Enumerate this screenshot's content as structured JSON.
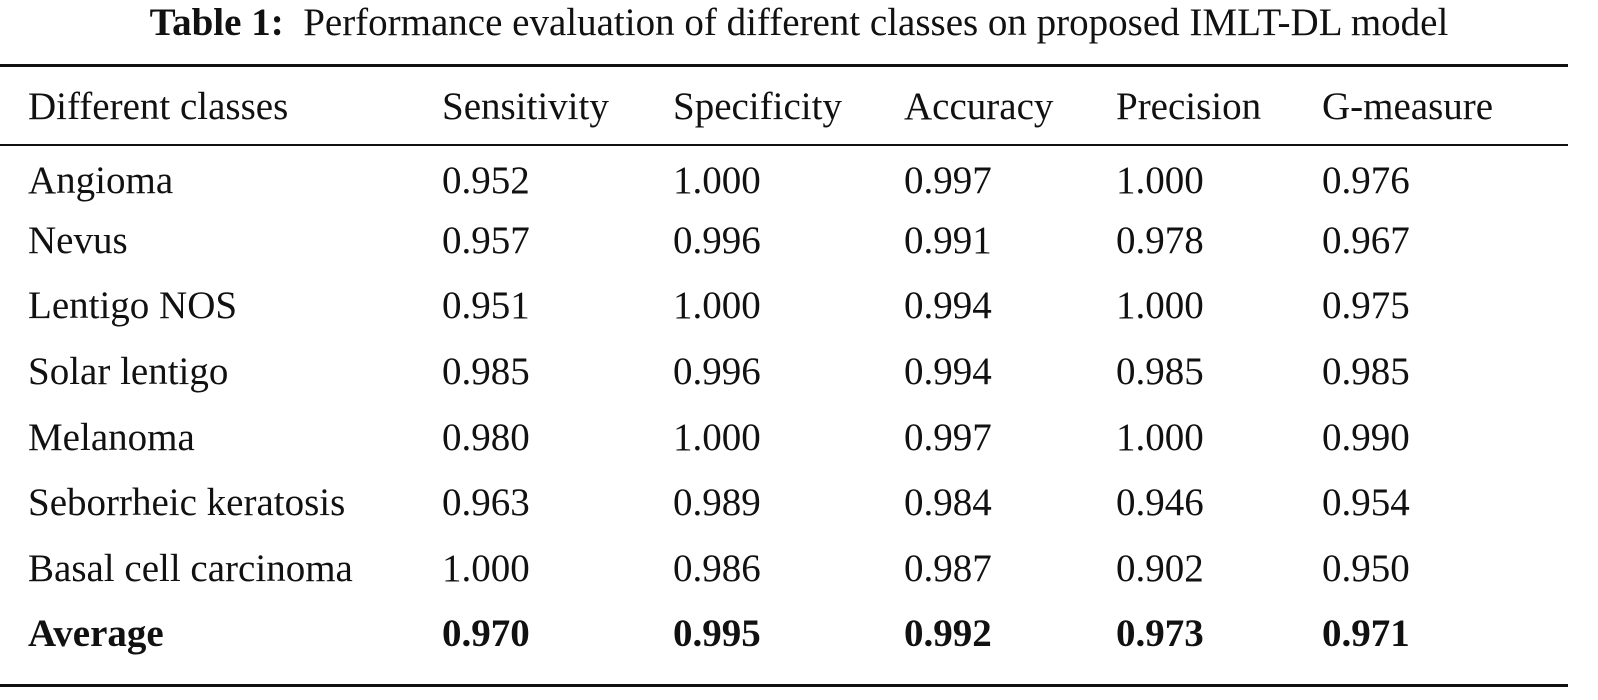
{
  "caption": {
    "label": "Table 1:",
    "text": "Performance evaluation of different classes on proposed IMLT-DL model"
  },
  "table": {
    "headers": [
      "Different classes",
      "Sensitivity",
      "Specificity",
      "Accuracy",
      "Precision",
      "G-measure"
    ],
    "rows": [
      [
        "Angioma",
        "0.952",
        "1.000",
        "0.997",
        "1.000",
        "0.976"
      ],
      [
        "Nevus",
        "0.957",
        "0.996",
        "0.991",
        "0.978",
        "0.967"
      ],
      [
        "Lentigo NOS",
        "0.951",
        "1.000",
        "0.994",
        "1.000",
        "0.975"
      ],
      [
        "Solar lentigo",
        "0.985",
        "0.996",
        "0.994",
        "0.985",
        "0.985"
      ],
      [
        "Melanoma",
        "0.980",
        "1.000",
        "0.997",
        "1.000",
        "0.990"
      ],
      [
        "Seborrheic keratosis",
        "0.963",
        "0.989",
        "0.984",
        "0.946",
        "0.954"
      ],
      [
        "Basal cell carcinoma",
        "1.000",
        "0.986",
        "0.987",
        "0.902",
        "0.950"
      ],
      [
        "Average",
        "0.970",
        "0.995",
        "0.992",
        "0.973",
        "0.971"
      ]
    ]
  }
}
